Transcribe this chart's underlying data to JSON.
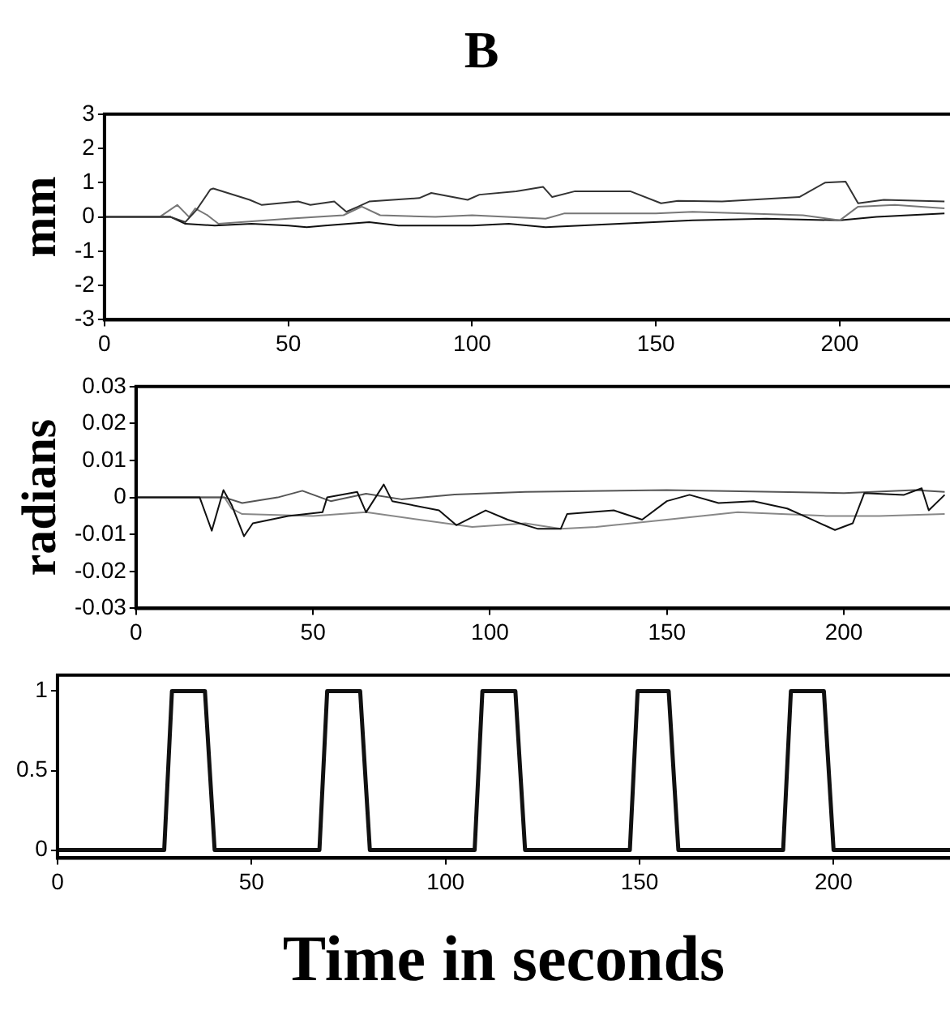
{
  "chart_data": [
    {
      "type": "line",
      "title": "B",
      "ylabel": "mm",
      "xlim": [
        0,
        230
      ],
      "xticks": [
        0,
        50,
        100,
        150,
        200
      ],
      "ylim": [
        -3,
        3
      ],
      "yticks": [
        -3,
        -2,
        -1,
        0,
        1,
        2,
        3
      ],
      "grid": false,
      "legend": false,
      "marker": "none",
      "line_style": "solid",
      "series": [
        {
          "color": "#333333",
          "x": [
            0,
            18,
            22,
            25,
            28.8,
            29.6,
            39.5,
            42.8,
            52.7,
            56,
            62.5,
            65.8,
            69,
            72,
            85.6,
            88.9,
            98.8,
            102,
            112,
            119.3,
            121.8,
            128,
            143,
            151.4,
            156,
            168,
            189,
            196,
            201.6,
            205,
            212,
            228.5
          ],
          "values": [
            0,
            0,
            -0.15,
            0.2,
            0.8,
            0.83,
            0.5,
            0.35,
            0.45,
            0.35,
            0.45,
            0.15,
            0.3,
            0.45,
            0.55,
            0.7,
            0.5,
            0.65,
            0.75,
            0.88,
            0.58,
            0.75,
            0.75,
            0.4,
            0.47,
            0.45,
            0.58,
            1.0,
            1.03,
            0.4,
            0.5,
            0.45
          ]
        },
        {
          "color": "#777777",
          "x": [
            0,
            15,
            19.8,
            23,
            24.7,
            28,
            31,
            50,
            65,
            70,
            75,
            90,
            100,
            120,
            125,
            150,
            160,
            190,
            200,
            205,
            215,
            228.5
          ],
          "values": [
            0,
            0,
            0.35,
            0,
            0.25,
            0.05,
            -0.2,
            -0.05,
            0.05,
            0.3,
            0.05,
            0,
            0.05,
            -0.05,
            0.1,
            0.1,
            0.15,
            0.05,
            -0.1,
            0.3,
            0.35,
            0.25
          ]
        },
        {
          "color": "#111111",
          "x": [
            0,
            18,
            22,
            30,
            40,
            50,
            55,
            60,
            72,
            80,
            100,
            110,
            120,
            140,
            160,
            180,
            200,
            210,
            228.5
          ],
          "values": [
            0,
            0,
            -0.2,
            -0.25,
            -0.2,
            -0.25,
            -0.3,
            -0.25,
            -0.15,
            -0.25,
            -0.25,
            -0.2,
            -0.3,
            -0.2,
            -0.1,
            -0.05,
            -0.1,
            0,
            0.1
          ]
        }
      ]
    },
    {
      "type": "line",
      "ylabel": "radians",
      "xlim": [
        0,
        230
      ],
      "xticks": [
        0,
        50,
        100,
        150,
        200
      ],
      "ylim": [
        -0.03,
        0.03
      ],
      "yticks": [
        -0.03,
        -0.02,
        -0.01,
        0,
        0.01,
        0.02,
        0.03
      ],
      "grid": false,
      "legend": false,
      "marker": "none",
      "line_style": "solid",
      "series": [
        {
          "color": "#111111",
          "x": [
            0,
            18,
            21.4,
            24.7,
            27,
            30.5,
            33,
            43,
            52.7,
            54,
            62.5,
            65,
            70,
            72.4,
            85.6,
            90.5,
            98.8,
            105,
            113.6,
            120,
            121.8,
            135,
            143,
            150,
            156.4,
            164.6,
            174.5,
            184,
            191,
            197.5,
            202.5,
            205.8,
            217,
            222,
            224,
            228.5
          ],
          "values": [
            0,
            0,
            -0.009,
            0.002,
            -0.002,
            -0.0105,
            -0.007,
            -0.005,
            -0.004,
            0,
            0.0015,
            -0.004,
            0.0035,
            -0.001,
            -0.0035,
            -0.0075,
            -0.0035,
            -0.006,
            -0.0085,
            -0.0085,
            -0.0045,
            -0.0035,
            -0.006,
            -0.001,
            0.0007,
            -0.0015,
            -0.001,
            -0.003,
            -0.006,
            -0.0088,
            -0.007,
            0.0012,
            0.0007,
            0.0025,
            -0.0035,
            0.0007
          ]
        },
        {
          "color": "#555555",
          "x": [
            0,
            25,
            30,
            40,
            47,
            55,
            65,
            75,
            90,
            110,
            150,
            200,
            220,
            228.5
          ],
          "values": [
            0,
            0,
            -0.0015,
            0,
            0.0018,
            -0.001,
            0.001,
            -0.0005,
            0.0008,
            0.0015,
            0.002,
            0.0012,
            0.002,
            0.0015
          ]
        },
        {
          "color": "#888888",
          "x": [
            0,
            25,
            27,
            30,
            50,
            65,
            80,
            95,
            110,
            120,
            130,
            150,
            170,
            195,
            210,
            228.5
          ],
          "values": [
            0,
            0,
            -0.003,
            -0.0045,
            -0.005,
            -0.004,
            -0.006,
            -0.008,
            -0.007,
            -0.0085,
            -0.008,
            -0.006,
            -0.004,
            -0.005,
            -0.005,
            -0.0045
          ]
        }
      ]
    },
    {
      "type": "line",
      "xlabel": "Time in seconds",
      "xlim": [
        0,
        230
      ],
      "xticks": [
        0,
        50,
        100,
        150,
        200
      ],
      "ylim": [
        -0.05,
        1.1
      ],
      "yticks": [
        0,
        0.5,
        1
      ],
      "grid": false,
      "legend": false,
      "marker": "none",
      "line_style": "solid",
      "series": [
        {
          "color": "#111111",
          "x": [
            0,
            27.5,
            29.5,
            38,
            40.5,
            67.5,
            69.5,
            78,
            80.5,
            107.5,
            109.5,
            118,
            120.5,
            147.5,
            149.5,
            157.5,
            160,
            187,
            189,
            197.5,
            200,
            230
          ],
          "values": [
            0,
            0,
            1,
            1,
            0,
            0,
            1,
            1,
            0,
            0,
            1,
            1,
            0,
            0,
            1,
            1,
            0,
            0,
            1,
            1,
            0,
            0
          ]
        }
      ]
    }
  ]
}
